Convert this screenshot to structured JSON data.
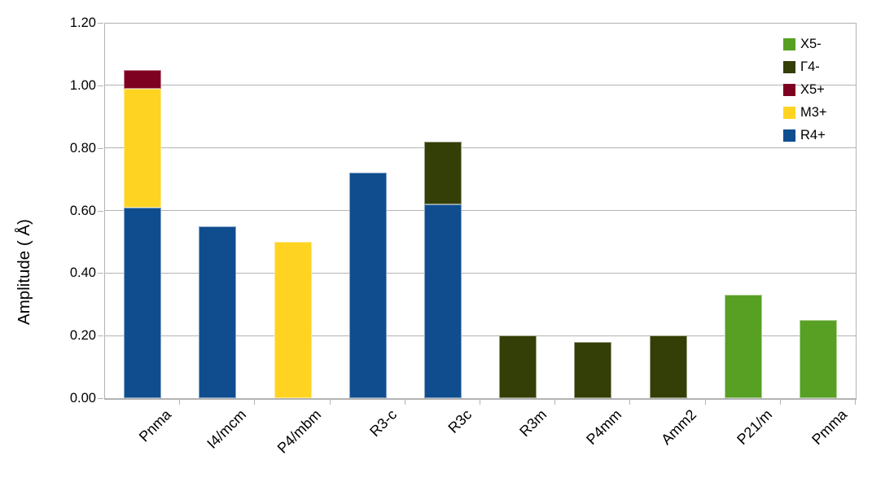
{
  "chart_data": {
    "type": "bar",
    "variant": "stacked",
    "title": "",
    "ylabel": "Amplitude ( Å)",
    "xlabel": "",
    "ylim": [
      0,
      1.2
    ],
    "ytick_step": 0.2,
    "ytick_labels": [
      "0.00",
      "0.20",
      "0.40",
      "0.60",
      "0.80",
      "1.00",
      "1.20"
    ],
    "categories": [
      "Pnma",
      "I4/mcm",
      "P4/mbm",
      "R3-c",
      "R3c",
      "R3m",
      "P4mm",
      "Amm2",
      "P21/m",
      "Pmma"
    ],
    "series": [
      {
        "name": "R4+",
        "color": "#0f4d8f",
        "values": [
          0.61,
          0.55,
          0,
          0.72,
          0.62,
          0,
          0,
          0,
          0,
          0
        ]
      },
      {
        "name": "M3+",
        "color": "#ffd321",
        "values": [
          0.38,
          0,
          0.5,
          0,
          0,
          0,
          0,
          0,
          0,
          0
        ]
      },
      {
        "name": "X5+",
        "color": "#7e0122",
        "values": [
          0.06,
          0,
          0,
          0,
          0,
          0,
          0,
          0,
          0,
          0
        ]
      },
      {
        "name": "Γ4-",
        "color": "#333f06",
        "values": [
          0,
          0,
          0,
          0,
          0.2,
          0.2,
          0.18,
          0.2,
          0,
          0
        ]
      },
      {
        "name": "X5-",
        "color": "#57a024",
        "values": [
          0,
          0,
          0,
          0,
          0,
          0,
          0,
          0,
          0.33,
          0.25
        ]
      }
    ],
    "legend": {
      "position": "top-right",
      "entries": [
        "X5-",
        "Γ4-",
        "X5+",
        "M3+",
        "R4+"
      ]
    },
    "grid": true,
    "grid_color": "#b3b3b3",
    "axis_color": "#b3b3b3",
    "text_color": "#000000",
    "background": "#ffffff"
  }
}
